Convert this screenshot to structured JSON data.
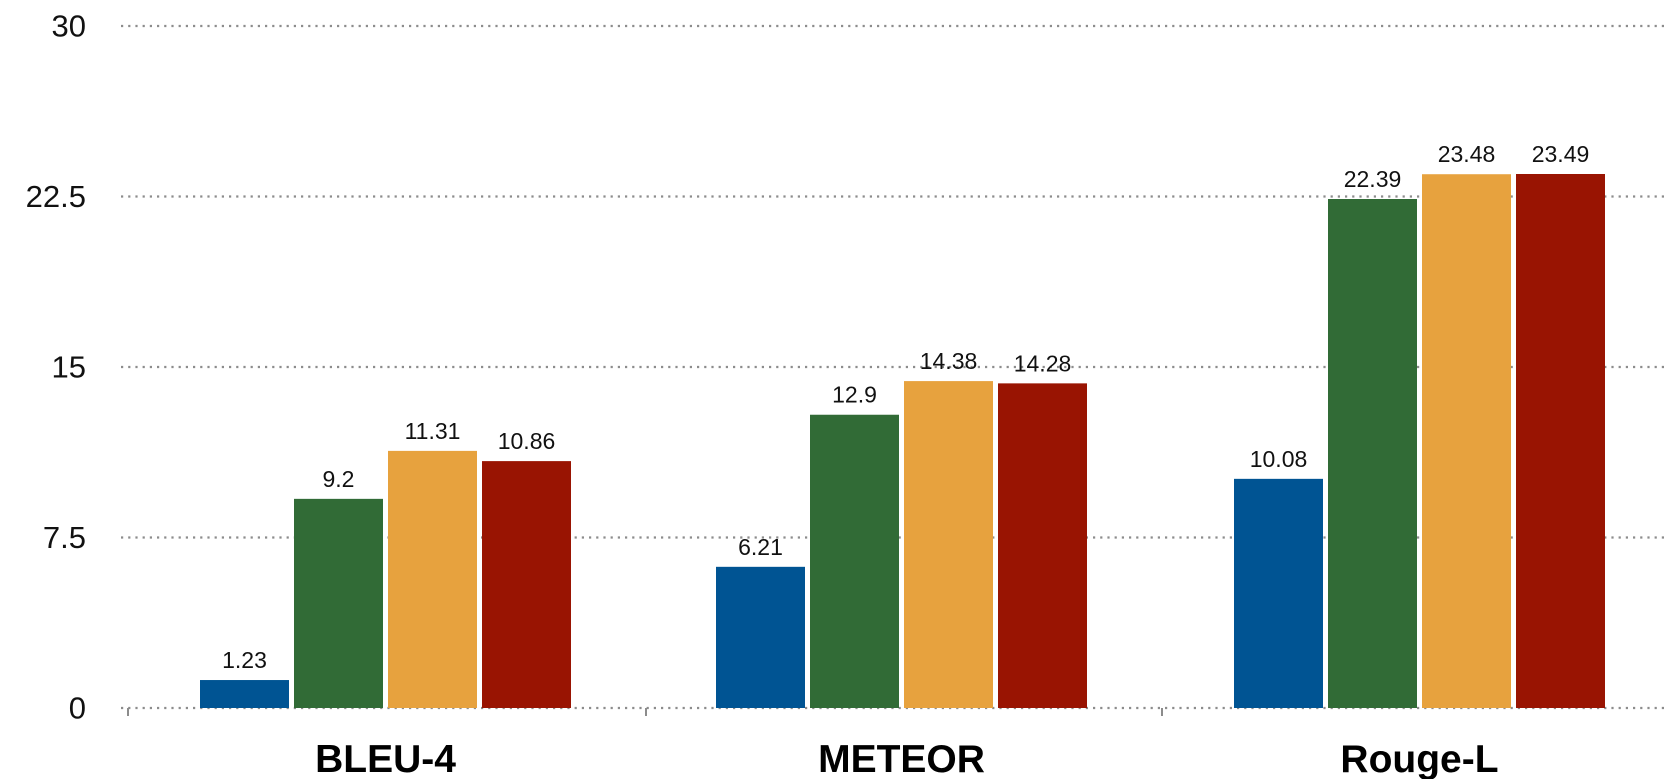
{
  "chart_data": {
    "type": "bar",
    "categories": [
      "BLEU-4",
      "METEOR",
      "Rouge-L"
    ],
    "series": [
      {
        "values": [
          1.23,
          6.21,
          10.08
        ],
        "color": "#005493"
      },
      {
        "values": [
          9.2,
          12.9,
          22.39
        ],
        "color": "#316b36"
      },
      {
        "values": [
          11.31,
          14.38,
          23.48
        ],
        "color": "#e7a23e"
      },
      {
        "values": [
          10.86,
          14.28,
          23.49
        ],
        "color": "#991402"
      }
    ],
    "ylim": [
      0,
      30
    ],
    "yticks": [
      "0",
      "7.5",
      "15",
      "22.5",
      "30"
    ],
    "title": "",
    "xlabel": "",
    "ylabel": "",
    "grid": true,
    "grid_style": "dotted",
    "legend": "none"
  }
}
